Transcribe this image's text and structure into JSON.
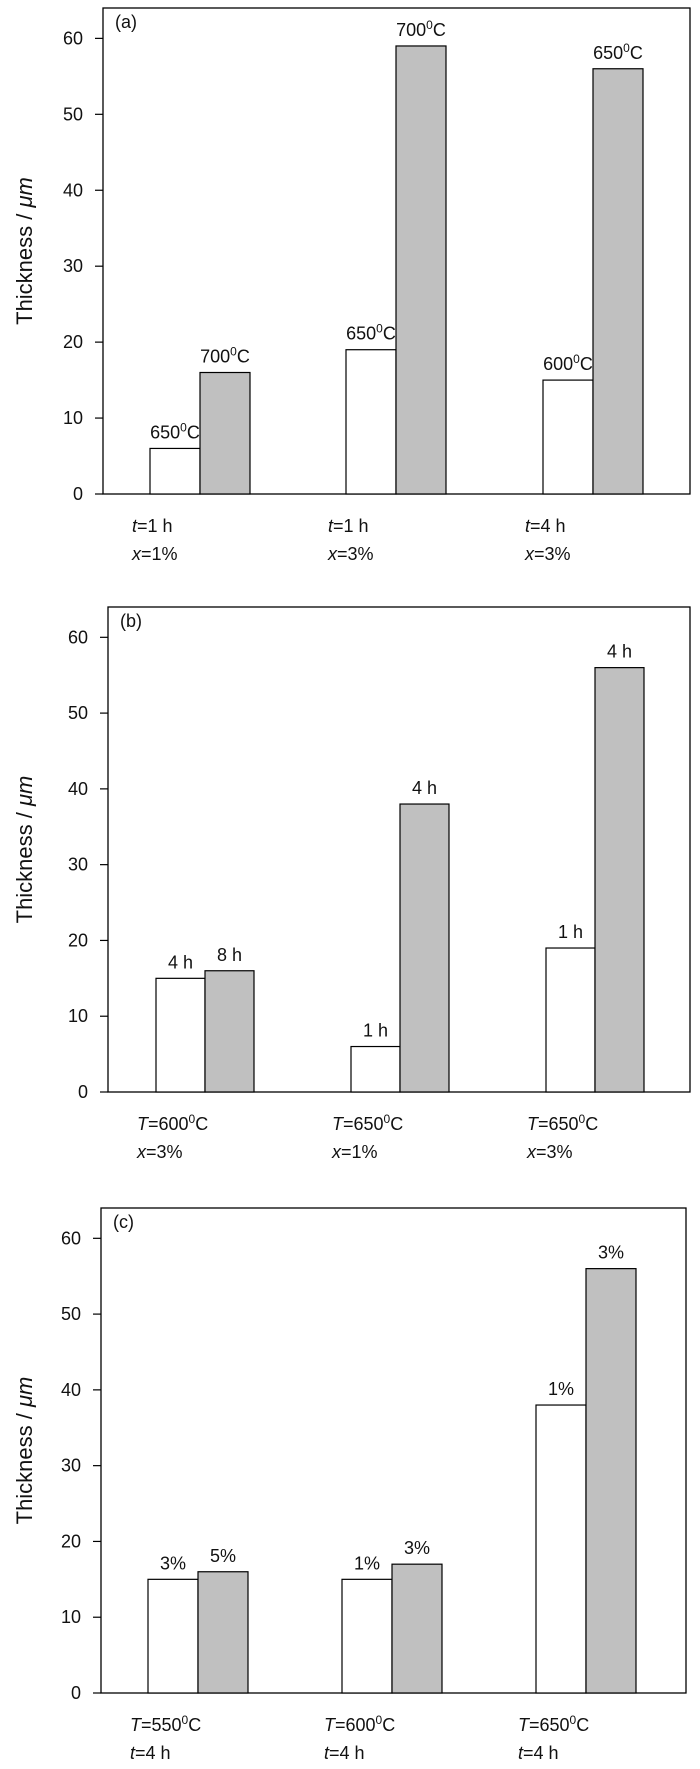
{
  "colors": {
    "bar_white": "#ffffff",
    "bar_gray": "#c0c0c0",
    "stroke": "#000000"
  },
  "chart_data": [
    {
      "type": "bar",
      "panel_label": "(a)",
      "ylabel_main": "Thickness / ",
      "ylabel_unit": "μm",
      "ylim": [
        0,
        64
      ],
      "yticks": [
        "0",
        "10",
        "20",
        "30",
        "40",
        "50",
        "60"
      ],
      "grid": false,
      "categories": [
        {
          "line1_var": "t",
          "line1_rest": "=1 h",
          "line2_var": "x",
          "line2_rest": "=1%"
        },
        {
          "line1_var": "t",
          "line1_rest": "=1 h",
          "line2_var": "x",
          "line2_rest": "=3%"
        },
        {
          "line1_var": "t",
          "line1_rest": "=4 h",
          "line2_var": "x",
          "line2_rest": "=3%"
        }
      ],
      "series": [
        {
          "values": [
            6,
            19,
            15
          ],
          "labels": [
            "650",
            "650",
            "600"
          ],
          "label_sup": "0",
          "label_suffix": "C"
        },
        {
          "values": [
            16,
            59,
            56
          ],
          "labels": [
            "700",
            "700",
            "650"
          ],
          "label_sup": "0",
          "label_suffix": "C"
        }
      ]
    },
    {
      "type": "bar",
      "panel_label": "(b)",
      "ylabel_main": "Thickness / ",
      "ylabel_unit": "μm",
      "ylim": [
        0,
        64
      ],
      "yticks": [
        "0",
        "10",
        "20",
        "30",
        "40",
        "50",
        "60"
      ],
      "grid": false,
      "categories": [
        {
          "line1_var": "T",
          "line1_rest": "=600",
          "line1_sup": "0",
          "line1_suffix": "C",
          "line2_var": "x",
          "line2_rest": "=3%"
        },
        {
          "line1_var": "T",
          "line1_rest": "=650",
          "line1_sup": "0",
          "line1_suffix": "C",
          "line2_var": "x",
          "line2_rest": "=1%"
        },
        {
          "line1_var": "T",
          "line1_rest": "=650",
          "line1_sup": "0",
          "line1_suffix": "C",
          "line2_var": "x",
          "line2_rest": "=3%"
        }
      ],
      "series": [
        {
          "values": [
            15,
            6,
            19
          ],
          "labels": [
            "4 h",
            "1 h",
            "1 h"
          ]
        },
        {
          "values": [
            16,
            38,
            56
          ],
          "labels": [
            "8 h",
            "4 h",
            "4 h"
          ]
        }
      ]
    },
    {
      "type": "bar",
      "panel_label": "(c)",
      "ylabel_main": "Thickness / ",
      "ylabel_unit": "μm",
      "ylim": [
        0,
        64
      ],
      "yticks": [
        "0",
        "10",
        "20",
        "30",
        "40",
        "50",
        "60"
      ],
      "grid": false,
      "categories": [
        {
          "line1_var": "T",
          "line1_rest": "=550",
          "line1_sup": "0",
          "line1_suffix": "C",
          "line2_var": "t",
          "line2_rest": "=4 h"
        },
        {
          "line1_var": "T",
          "line1_rest": "=600",
          "line1_sup": "0",
          "line1_suffix": "C",
          "line2_var": "t",
          "line2_rest": "=4 h"
        },
        {
          "line1_var": "T",
          "line1_rest": "=650",
          "line1_sup": "0",
          "line1_suffix": "C",
          "line2_var": "t",
          "line2_rest": "=4 h"
        }
      ],
      "series": [
        {
          "values": [
            15,
            15,
            38
          ],
          "labels": [
            "3%",
            "1%",
            "1%"
          ]
        },
        {
          "values": [
            16,
            17,
            56
          ],
          "labels": [
            "5%",
            "3%",
            "3%"
          ]
        }
      ]
    }
  ]
}
